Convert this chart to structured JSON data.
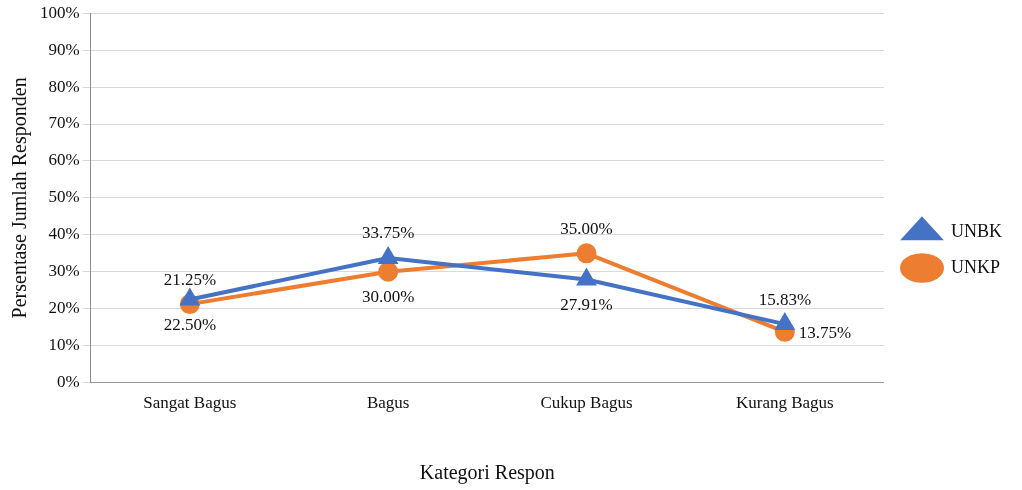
{
  "chart_data": {
    "type": "line",
    "xlabel": "Kategori Respon",
    "ylabel": "Persentase Jumlah Responden",
    "categories": [
      "Sangat Bagus",
      "Bagus",
      "Cukup Bagus",
      "Kurang Bagus"
    ],
    "series": [
      {
        "name": "UNBK",
        "color": "#4472c4",
        "marker": "triangle",
        "values": [
          22.5,
          33.75,
          27.91,
          15.83
        ],
        "value_labels": [
          "22.50%",
          "33.75%",
          "27.91%",
          "15.83%"
        ]
      },
      {
        "name": "UNKP",
        "color": "#ed7d31",
        "marker": "circle",
        "values": [
          21.25,
          30.0,
          35.0,
          13.75
        ],
        "value_labels": [
          "21.25%",
          "30.00%",
          "35.00%",
          "13.75%"
        ]
      }
    ],
    "ylim": [
      0,
      100
    ],
    "yticks": [
      {
        "value": 0,
        "label": "0%"
      },
      {
        "value": 10,
        "label": "10%"
      },
      {
        "value": 20,
        "label": "20%"
      },
      {
        "value": 30,
        "label": "30%"
      },
      {
        "value": 40,
        "label": "40%"
      },
      {
        "value": 50,
        "label": "50%"
      },
      {
        "value": 60,
        "label": "60%"
      },
      {
        "value": 70,
        "label": "70%"
      },
      {
        "value": 80,
        "label": "80%"
      },
      {
        "value": 90,
        "label": "90%"
      },
      {
        "value": 100,
        "label": "100%"
      }
    ],
    "grid": "y",
    "legend": "right",
    "line_style": "solid"
  }
}
